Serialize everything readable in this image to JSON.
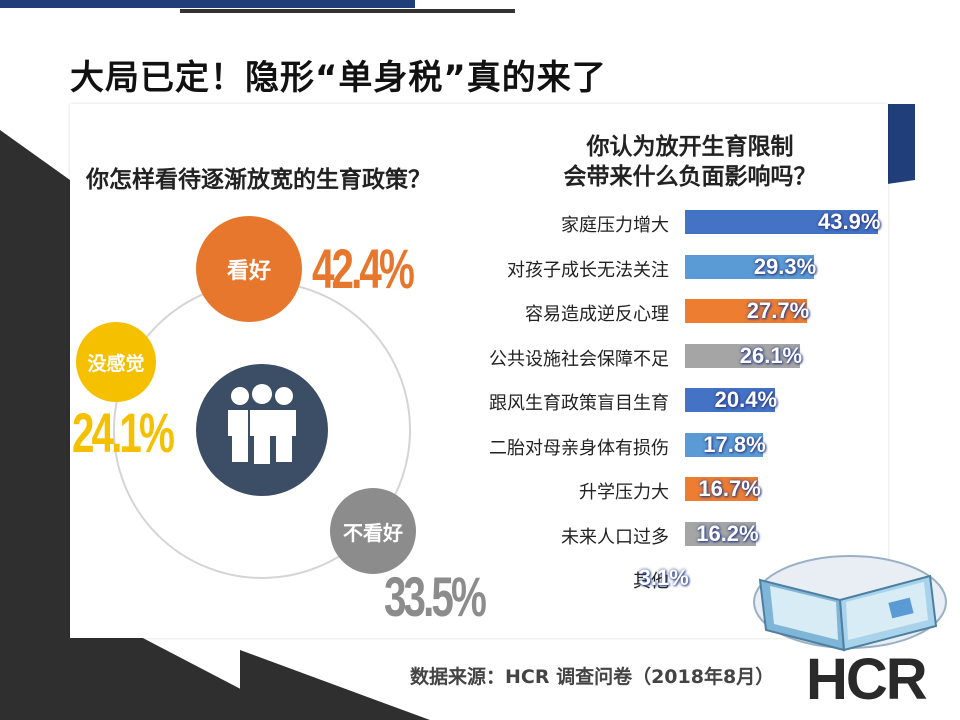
{
  "title": "大局已定！隐形“单身税”真的来了",
  "left_question": "你怎样看待逐渐放宽的生育政策？",
  "right_question": [
    "你认为放开生育限制",
    "会带来什么负面影响吗？"
  ],
  "source_text": "数据来源：HCR 调查问卷（2018年8月）",
  "logo_text": "HCR",
  "icons": {
    "people": "people-group-icon",
    "book": "open-book-icon"
  },
  "colors": {
    "orange": "#e8772e",
    "yellow": "#f5c000",
    "gray": "#8c8c8c",
    "dark_blue": "#3c4e65",
    "bar_blue": "#4472c4",
    "bar_light_blue": "#5b9bd5",
    "bar_orange": "#ed7d31",
    "bar_gray": "#a5a5a5"
  },
  "chart_data": [
    {
      "type": "pie",
      "title": "你怎样看待逐渐放宽的生育政策？",
      "labels": [
        "看好",
        "不看好",
        "没感觉"
      ],
      "values": [
        42.4,
        33.5,
        24.1
      ],
      "value_labels": [
        "42.4%",
        "33.5%",
        "24.1%"
      ],
      "unit": "%"
    },
    {
      "type": "bar",
      "orientation": "horizontal",
      "title": "你认为放开生育限制会带来什么负面影响吗？",
      "categories": [
        "家庭压力增大",
        "对孩子成长无法关注",
        "容易造成逆反心理",
        "公共设施社会保障不足",
        "跟风生育政策盲目生育",
        "二胎对母亲身体有损伤",
        "升学压力大",
        "未来人口过多",
        "其他"
      ],
      "values": [
        43.9,
        29.3,
        27.7,
        26.1,
        20.4,
        17.8,
        16.7,
        16.2,
        3.1
      ],
      "value_labels": [
        "43.9%",
        "29.3%",
        "27.7%",
        "26.1%",
        "20.4%",
        "17.8%",
        "16.7%",
        "16.2%",
        "3.1%"
      ],
      "bar_colors": [
        "#4472c4",
        "#5b9bd5",
        "#ed7d31",
        "#a5a5a5",
        "#4472c4",
        "#5b9bd5",
        "#ed7d31",
        "#a5a5a5",
        "#ffffff"
      ],
      "unit": "%"
    }
  ]
}
